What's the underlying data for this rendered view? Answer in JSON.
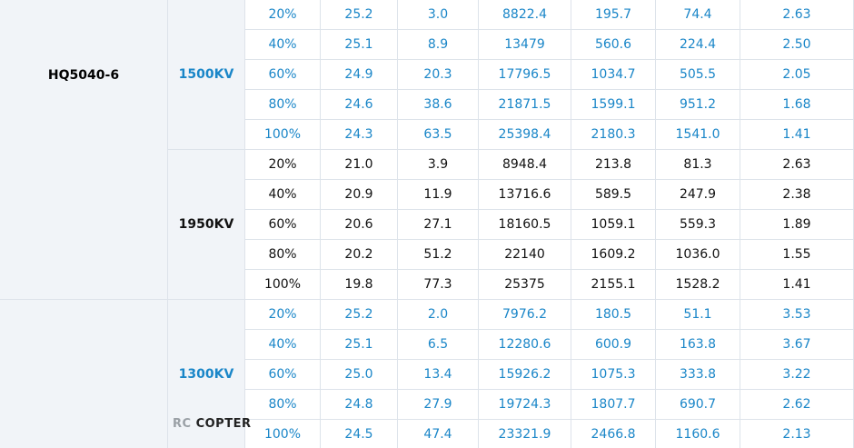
{
  "model_groups": [
    {
      "model": "HQ5040-6",
      "kv_groups": [
        {
          "kv": "1500KV",
          "color": "#1a86c8",
          "rows": [
            [
              "20%",
              "25.2",
              "3.0",
              "8822.4",
              "195.7",
              "74.4",
              "2.63"
            ],
            [
              "40%",
              "25.1",
              "8.9",
              "13479",
              "560.6",
              "224.4",
              "2.50"
            ],
            [
              "60%",
              "24.9",
              "20.3",
              "17796.5",
              "1034.7",
              "505.5",
              "2.05"
            ],
            [
              "80%",
              "24.6",
              "38.6",
              "21871.5",
              "1599.1",
              "951.2",
              "1.68"
            ],
            [
              "100%",
              "24.3",
              "63.5",
              "25398.4",
              "2180.3",
              "1541.0",
              "1.41"
            ]
          ]
        },
        {
          "kv": "1950KV",
          "color": "#111111",
          "rows": [
            [
              "20%",
              "21.0",
              "3.9",
              "8948.4",
              "213.8",
              "81.3",
              "2.63"
            ],
            [
              "40%",
              "20.9",
              "11.9",
              "13716.6",
              "589.5",
              "247.9",
              "2.38"
            ],
            [
              "60%",
              "20.6",
              "27.1",
              "18160.5",
              "1059.1",
              "559.3",
              "1.89"
            ],
            [
              "80%",
              "20.2",
              "51.2",
              "22140",
              "1609.2",
              "1036.0",
              "1.55"
            ],
            [
              "100%",
              "19.8",
              "77.3",
              "25375",
              "2155.1",
              "1528.2",
              "1.41"
            ]
          ]
        }
      ]
    },
    {
      "kv_groups": [
        {
          "kv": "1300KV",
          "color": "#1a86c8",
          "rows": [
            [
              "20%",
              "25.2",
              "2.0",
              "7976.2",
              "180.5",
              "51.1",
              "3.53"
            ],
            [
              "40%",
              "25.1",
              "6.5",
              "12280.6",
              "600.9",
              "163.8",
              "3.67"
            ],
            [
              "60%",
              "25.0",
              "13.4",
              "15926.2",
              "1075.3",
              "333.8",
              "3.22"
            ],
            [
              "80%",
              "24.8",
              "27.9",
              "19724.3",
              "1807.7",
              "690.7",
              "2.62"
            ],
            [
              "100%",
              "24.5",
              "47.4",
              "23321.9",
              "2466.8",
              "1160.6",
              "2.13"
            ]
          ]
        }
      ]
    }
  ],
  "watermark": {
    "rc": "RC",
    "copter": "COPTER"
  }
}
